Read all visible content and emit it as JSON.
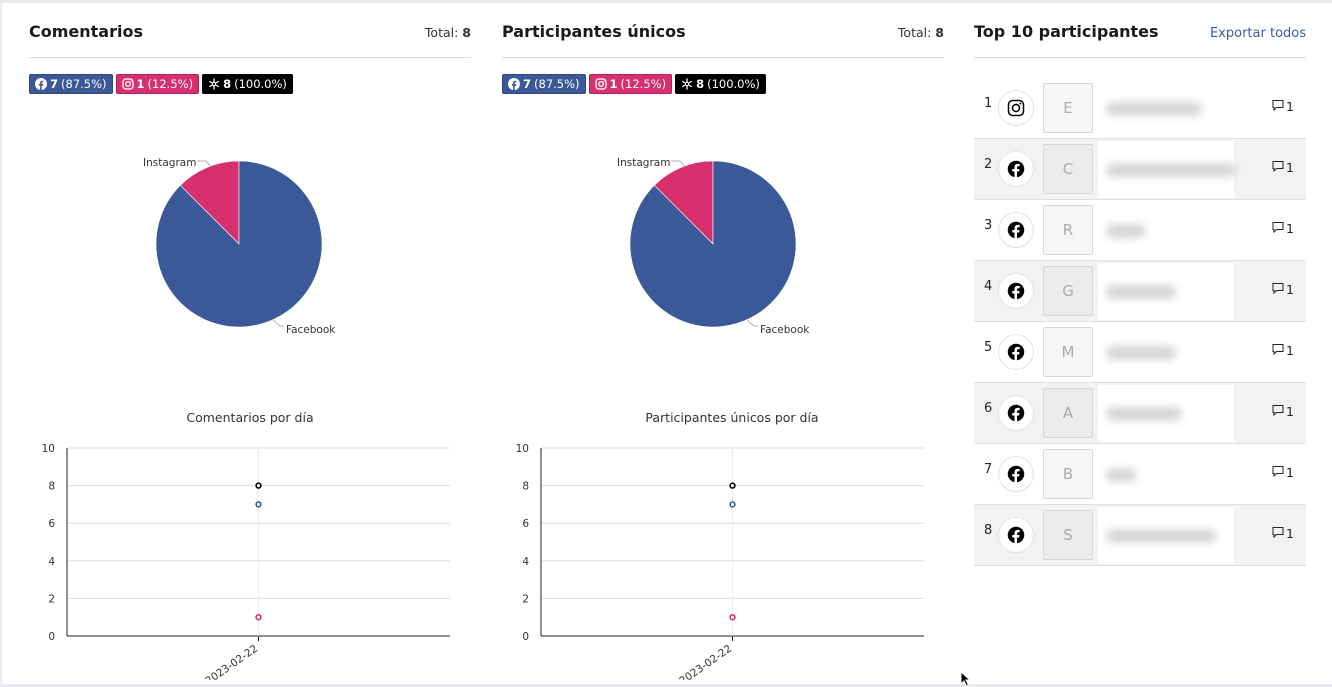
{
  "colors": {
    "facebook": "#3b5998",
    "instagram": "#d6306f",
    "total": "#000000",
    "link": "#3b5aa8"
  },
  "panels": [
    {
      "title": "Comentarios",
      "total_label": "Total:",
      "total_value": "8",
      "badges": [
        {
          "icon": "facebook-icon",
          "count": "7",
          "pct": "(87.5%)"
        },
        {
          "icon": "instagram-icon",
          "count": "1",
          "pct": "(12.5%)"
        },
        {
          "icon": "all-networks-icon",
          "count": "8",
          "pct": "(100.0%)"
        }
      ],
      "pie_labels": {
        "instagram": "Instagram",
        "facebook": "Facebook"
      },
      "line_title": "Comentarios por día"
    },
    {
      "title": "Participantes únicos",
      "total_label": "Total:",
      "total_value": "8",
      "badges": [
        {
          "icon": "facebook-icon",
          "count": "7",
          "pct": "(87.5%)"
        },
        {
          "icon": "instagram-icon",
          "count": "1",
          "pct": "(12.5%)"
        },
        {
          "icon": "all-networks-icon",
          "count": "8",
          "pct": "(100.0%)"
        }
      ],
      "pie_labels": {
        "instagram": "Instagram",
        "facebook": "Facebook"
      },
      "line_title": "Participantes únicos por día"
    }
  ],
  "top": {
    "title": "Top 10 participantes",
    "export_label": "Exportar todos",
    "rows": [
      {
        "rank": "1",
        "network": "instagram-icon",
        "initial": "E",
        "comments": "1"
      },
      {
        "rank": "2",
        "network": "facebook-icon",
        "initial": "C",
        "comments": "1"
      },
      {
        "rank": "3",
        "network": "facebook-icon",
        "initial": "R",
        "comments": "1"
      },
      {
        "rank": "4",
        "network": "facebook-icon",
        "initial": "G",
        "comments": "1"
      },
      {
        "rank": "5",
        "network": "facebook-icon",
        "initial": "M",
        "comments": "1"
      },
      {
        "rank": "6",
        "network": "facebook-icon",
        "initial": "A",
        "comments": "1"
      },
      {
        "rank": "7",
        "network": "facebook-icon",
        "initial": "B",
        "comments": "1"
      },
      {
        "rank": "8",
        "network": "facebook-icon",
        "initial": "S",
        "comments": "1"
      }
    ]
  },
  "chart_data": [
    {
      "type": "pie",
      "categories": [
        "Facebook",
        "Instagram"
      ],
      "values": [
        7,
        1
      ]
    },
    {
      "type": "scatter",
      "title": "Comentarios por día",
      "x": [
        "2023-02-22"
      ],
      "ylim": [
        0,
        10
      ],
      "yticks": [
        0,
        2,
        4,
        6,
        8,
        10
      ],
      "grid": true,
      "series": [
        {
          "color": "#000000",
          "values": [
            8
          ]
        },
        {
          "color": "#3b5998",
          "values": [
            7
          ]
        },
        {
          "color": "#d6306f",
          "values": [
            1
          ]
        }
      ]
    },
    {
      "type": "pie",
      "categories": [
        "Facebook",
        "Instagram"
      ],
      "values": [
        7,
        1
      ]
    },
    {
      "type": "scatter",
      "title": "Participantes únicos por día",
      "x": [
        "2023-02-22"
      ],
      "ylim": [
        0,
        10
      ],
      "yticks": [
        0,
        2,
        4,
        6,
        8,
        10
      ],
      "grid": true,
      "series": [
        {
          "color": "#000000",
          "values": [
            8
          ]
        },
        {
          "color": "#3b5998",
          "values": [
            7
          ]
        },
        {
          "color": "#d6306f",
          "values": [
            1
          ]
        }
      ]
    }
  ]
}
